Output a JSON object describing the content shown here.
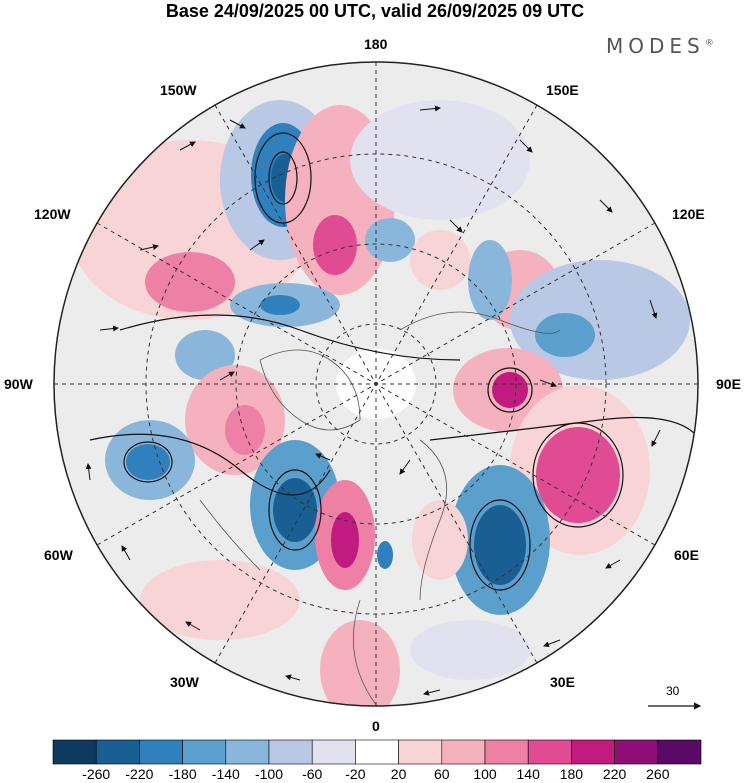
{
  "title": "Base 24/09/2025 00 UTC, valid 26/09/2025 09 UTC",
  "brand": {
    "name": "MODES",
    "mark": "®"
  },
  "longitude_labels": {
    "top": "180",
    "bottom": "0",
    "left": "90W",
    "right": "90E",
    "upper_left_1": "150W",
    "upper_left_2": "120W",
    "upper_right_1": "150E",
    "upper_right_2": "120E",
    "lower_left_1": "60W",
    "lower_left_2": "30W",
    "lower_right_1": "60E",
    "lower_right_2": "30E"
  },
  "vector_reference": {
    "value": "30"
  },
  "colorbar": {
    "ticks": [
      "-260",
      "-220",
      "-180",
      "-140",
      "-100",
      "-60",
      "-20",
      "20",
      "60",
      "100",
      "140",
      "180",
      "220",
      "260"
    ],
    "colors": [
      "#0f3a5f",
      "#1a5f93",
      "#2f80bd",
      "#5b9fcd",
      "#8bb6db",
      "#b9c8e4",
      "#e2e1f0",
      "#ffffff",
      "#f9d4d6",
      "#f5b1bd",
      "#ee80a6",
      "#e14b93",
      "#c21b80",
      "#8f0f78",
      "#5a0a66"
    ]
  },
  "colors": {
    "ocean_land_background": "#e8e8e8",
    "graticule": "#333333",
    "coastline": "#555555"
  },
  "map": {
    "projection": "polar-stereographic-north",
    "field": "500hPa anomaly with wind vectors"
  }
}
